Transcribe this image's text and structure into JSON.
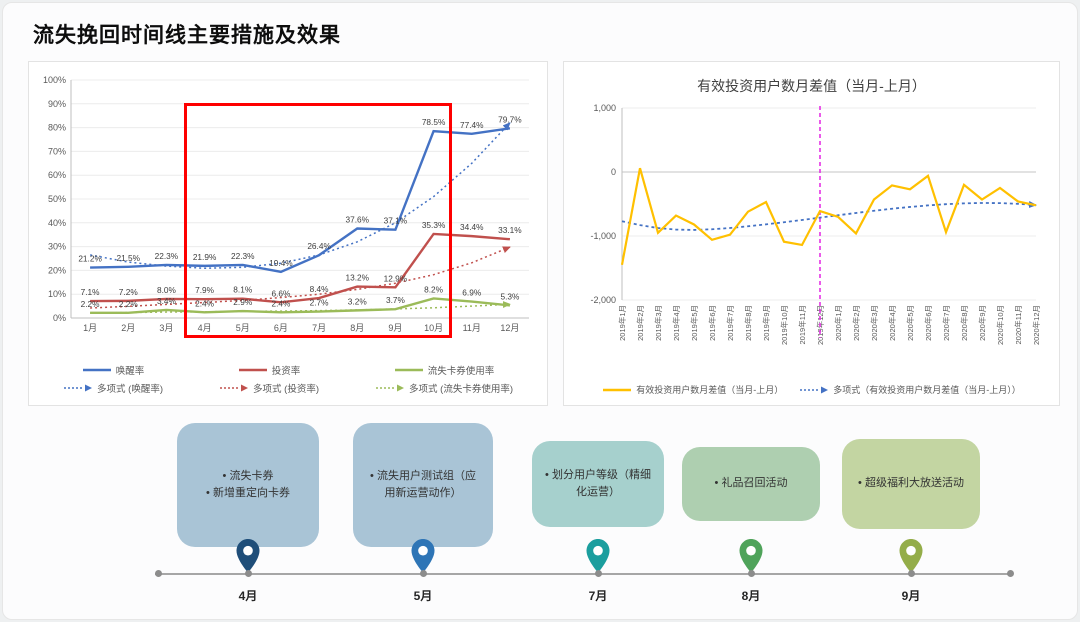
{
  "page": {
    "title": "流失挽回时间线主要措施及效果"
  },
  "colors": {
    "highlight_box": "#ff0000",
    "timeline_line": "#a6a6a6"
  },
  "chart_data": [
    {
      "type": "line",
      "title": "",
      "categories": [
        "1月",
        "2月",
        "3月",
        "4月",
        "5月",
        "6月",
        "7月",
        "8月",
        "9月",
        "10月",
        "11月",
        "12月"
      ],
      "ylim": [
        0,
        100
      ],
      "ytick_step": 10,
      "ytick_suffix": "%",
      "grid": true,
      "legend_position": "bottom",
      "highlight_region": {
        "from": "4月",
        "to": "10月",
        "color": "#ff0000"
      },
      "series": [
        {
          "name": "唤醒率",
          "trend_name": "多项式 (唤醒率)",
          "color": "#4472c4",
          "values": [
            21.2,
            21.5,
            22.3,
            21.9,
            22.3,
            19.4,
            26.4,
            37.6,
            37.1,
            78.5,
            77.4,
            79.7
          ],
          "trend": [
            26.5,
            23.5,
            21.8,
            20.9,
            21.3,
            23.0,
            26.5,
            32.0,
            40.0,
            51.0,
            65.0,
            82.0
          ]
        },
        {
          "name": "投资率",
          "trend_name": "多项式 (投资率)",
          "color": "#c0504d",
          "values": [
            7.1,
            7.2,
            8.0,
            7.9,
            8.1,
            6.6,
            8.4,
            13.2,
            12.9,
            35.3,
            34.4,
            33.1
          ],
          "trend": [
            4.2,
            4.9,
            5.7,
            6.5,
            7.4,
            8.6,
            10.0,
            12.0,
            14.6,
            18.2,
            23.2,
            29.8
          ]
        },
        {
          "name": "流失卡券使用率",
          "trend_name": "多项式 (流失卡券使用率)",
          "color": "#9bbb59",
          "values": [
            2.2,
            2.2,
            3.4,
            2.4,
            2.9,
            2.4,
            2.7,
            3.2,
            3.7,
            8.2,
            6.9,
            5.3
          ],
          "trend": [
            2.1,
            2.3,
            2.5,
            2.6,
            2.8,
            2.9,
            3.1,
            3.4,
            3.8,
            4.3,
            5.0,
            5.8
          ]
        }
      ]
    },
    {
      "type": "line",
      "title": "有效投资用户数月差值（当月-上月）",
      "categories": [
        "2019年1月",
        "2019年2月",
        "2019年3月",
        "2019年4月",
        "2019年5月",
        "2019年6月",
        "2019年7月",
        "2019年8月",
        "2019年9月",
        "2019年10月",
        "2019年11月",
        "2019年12月",
        "2020年1月",
        "2020年2月",
        "2020年3月",
        "2020年4月",
        "2020年5月",
        "2020年6月",
        "2020年7月",
        "2020年8月",
        "2020年9月",
        "2020年10月",
        "2020年11月",
        "2020年12月"
      ],
      "ylim": [
        -2000,
        1000
      ],
      "yticks": [
        {
          "v": 1000,
          "label": "1,000"
        },
        {
          "v": 0,
          "label": "0"
        },
        {
          "v": -1000,
          "label": "-1,000"
        },
        {
          "v": -2000,
          "label": "-2,000"
        }
      ],
      "vline": {
        "at": "2019年12月",
        "color": "#e531e5"
      },
      "legend_position": "bottom",
      "series": [
        {
          "name": "有效投资用户数月差值（当月-上月）",
          "trend_name": "多项式（有效投资用户数月差值（当月-上月））",
          "color": "#ffc000",
          "trend_color": "#4472c4",
          "values": [
            -1450,
            60,
            -950,
            -680,
            -820,
            -1060,
            -980,
            -620,
            -470,
            -1090,
            -1140,
            -610,
            -700,
            -960,
            -430,
            -210,
            -270,
            -60,
            -940,
            -200,
            -430,
            -250,
            -460,
            -520
          ],
          "trend": [
            -770,
            -830,
            -875,
            -900,
            -905,
            -895,
            -875,
            -848,
            -818,
            -785,
            -750,
            -713,
            -676,
            -640,
            -606,
            -574,
            -546,
            -522,
            -503,
            -490,
            -484,
            -486,
            -497,
            -516
          ]
        }
      ]
    }
  ],
  "timeline": {
    "milestones": [
      {
        "month": "4月",
        "items": [
          "流失卡券",
          "新增重定向卡券"
        ],
        "box_color": "#a9c4d6",
        "pin_color": "#1f4e79"
      },
      {
        "month": "5月",
        "items": [
          "流失用户测试组（应用新运营动作）"
        ],
        "box_color": "#a9c4d6",
        "pin_color": "#2e75b6"
      },
      {
        "month": "7月",
        "items": [
          "划分用户等级（精细化运营）"
        ],
        "box_color": "#a6d0cd",
        "pin_color": "#1b9e9e"
      },
      {
        "month": "8月",
        "items": [
          "礼品召回活动"
        ],
        "box_color": "#aecfb0",
        "pin_color": "#4fa35a"
      },
      {
        "month": "9月",
        "items": [
          "超级福利大放送活动"
        ],
        "box_color": "#c3d5a2",
        "pin_color": "#94ad49"
      }
    ]
  }
}
